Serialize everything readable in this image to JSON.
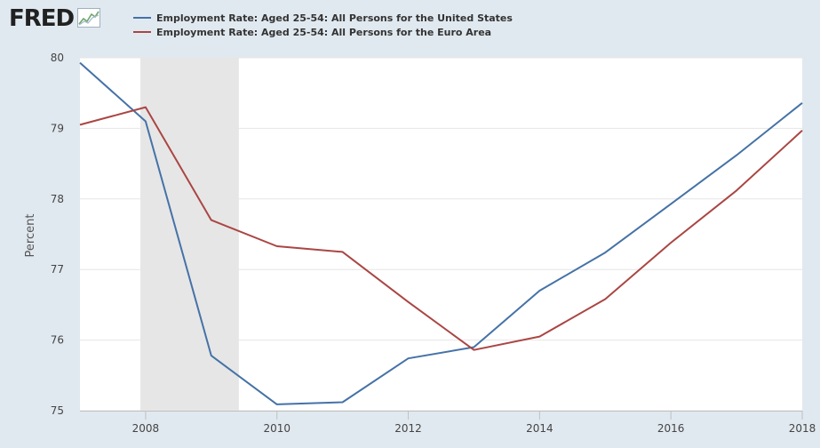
{
  "header": {
    "logo_text": "FRED",
    "logo_icon": "fred-chart-icon"
  },
  "colors": {
    "background": "#e1e9f0",
    "plot_background": "#ffffff",
    "recession_shade": "#e6e6e6",
    "us_series": "#4572a7",
    "euro_series": "#aa4643"
  },
  "chart_data": {
    "type": "line",
    "ylabel": "Percent",
    "xlabel": "",
    "ylim": [
      75,
      80
    ],
    "xlim": [
      2007,
      2018
    ],
    "yticks": [
      75,
      76,
      77,
      78,
      79,
      80
    ],
    "xticks": [
      2008,
      2010,
      2012,
      2014,
      2016,
      2018
    ],
    "x": [
      2007,
      2008,
      2009,
      2010,
      2011,
      2012,
      2013,
      2014,
      2015,
      2016,
      2017,
      2018
    ],
    "series": [
      {
        "name": "Employment Rate: Aged 25-54: All Persons for the United States",
        "color": "#4572a7",
        "values": [
          79.93,
          79.1,
          75.78,
          75.09,
          75.12,
          75.74,
          75.9,
          76.7,
          77.24,
          77.93,
          78.62,
          79.36
        ]
      },
      {
        "name": "Employment Rate: Aged 25-54: All Persons for the Euro Area",
        "color": "#aa4643",
        "values": [
          79.05,
          79.3,
          77.7,
          77.33,
          77.25,
          76.54,
          75.86,
          76.05,
          76.58,
          77.38,
          78.12,
          78.97
        ]
      }
    ],
    "recession": {
      "start": 2007.92,
      "end": 2009.42
    },
    "grid": true,
    "legend": "top-left"
  }
}
